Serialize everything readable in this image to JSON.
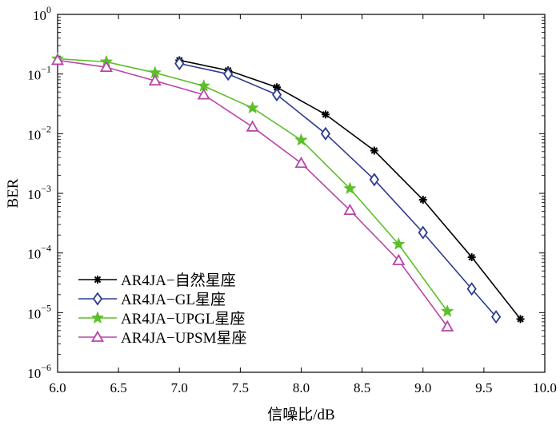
{
  "chart_data": {
    "type": "line",
    "xlabel": "信噪比/dB",
    "ylabel": "BER",
    "xlim": [
      6.0,
      10.0
    ],
    "ylim": [
      1e-06,
      1
    ],
    "yscale": "log",
    "x_ticks": [
      "6.0",
      "6.5",
      "7.0",
      "7.5",
      "8.0",
      "8.5",
      "9.0",
      "9.5",
      "10.0"
    ],
    "y_ticks": [
      {
        "base": "10",
        "exp": "0"
      },
      {
        "base": "10",
        "exp": "−1"
      },
      {
        "base": "10",
        "exp": "−2"
      },
      {
        "base": "10",
        "exp": "−3"
      },
      {
        "base": "10",
        "exp": "−4"
      },
      {
        "base": "10",
        "exp": "−5"
      },
      {
        "base": "10",
        "exp": "−6"
      }
    ],
    "grid": false,
    "legend_position": "bottom-left",
    "series": [
      {
        "name": "AR4JA−自然星座",
        "color": "#000000",
        "marker": "asterisk",
        "x": [
          7.0,
          7.4,
          7.8,
          8.2,
          8.6,
          9.0,
          9.4,
          9.8
        ],
        "y": [
          0.17,
          0.115,
          0.06,
          0.021,
          0.0052,
          0.00078,
          8.5e-05,
          7.8e-06
        ]
      },
      {
        "name": "AR4JA−GL星座",
        "color": "#2b3a8f",
        "marker": "diamond",
        "x": [
          7.0,
          7.4,
          7.8,
          8.2,
          8.6,
          9.0,
          9.4,
          9.6
        ],
        "y": [
          0.15,
          0.1,
          0.045,
          0.01,
          0.0017,
          0.00022,
          2.5e-05,
          8.5e-06
        ]
      },
      {
        "name": "AR4JA−UPGL星座",
        "color": "#5cbf2a",
        "marker": "star",
        "x": [
          6.0,
          6.4,
          6.8,
          7.2,
          7.6,
          8.0,
          8.4,
          8.8,
          9.2
        ],
        "y": [
          0.18,
          0.16,
          0.105,
          0.063,
          0.027,
          0.0078,
          0.0012,
          0.00014,
          1.05e-05
        ]
      },
      {
        "name": "AR4JA−UPSM星座",
        "color": "#b845a8",
        "marker": "triangle",
        "x": [
          6.0,
          6.4,
          6.8,
          7.2,
          7.6,
          8.0,
          8.4,
          8.8,
          9.2
        ],
        "y": [
          0.17,
          0.13,
          0.077,
          0.045,
          0.013,
          0.0032,
          0.00052,
          7.5e-05,
          5.8e-06
        ]
      }
    ]
  }
}
